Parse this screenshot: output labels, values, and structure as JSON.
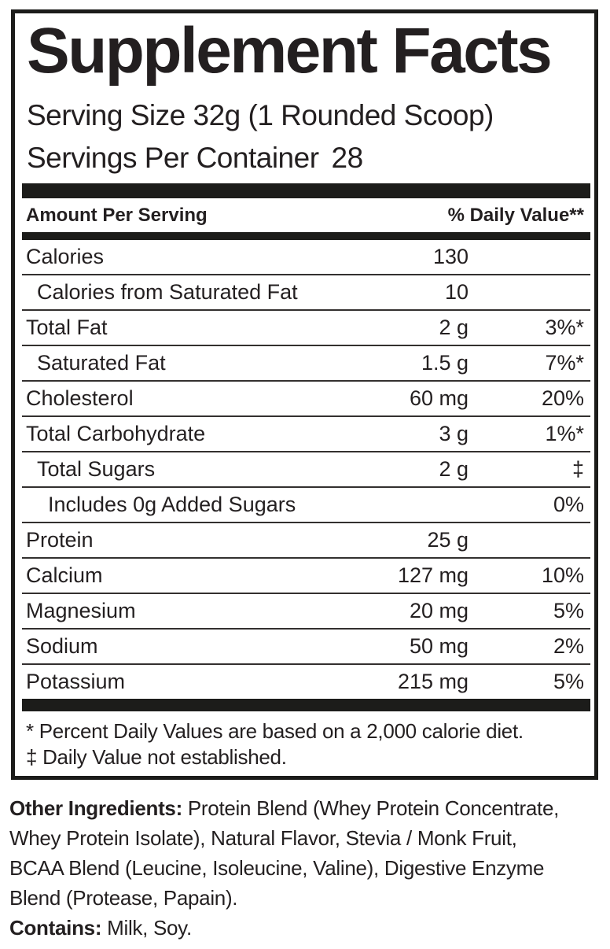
{
  "label": {
    "title": "Supplement Facts",
    "serving_size": "Serving Size 32g (1 Rounded Scoop)",
    "servings_per_container_label": "Servings Per Container",
    "servings_per_container_value": "28",
    "column_headers": {
      "amount": "Amount Per Serving",
      "daily_value": "% Daily Value**"
    },
    "rows": [
      {
        "name": "Calories",
        "amount": "130",
        "dv": "",
        "indent": 0
      },
      {
        "name": "Calories from Saturated Fat",
        "amount": "10",
        "dv": "",
        "indent": 1
      },
      {
        "name": "Total Fat",
        "amount": "2 g",
        "dv": "3%*",
        "indent": 0
      },
      {
        "name": "Saturated Fat",
        "amount": "1.5 g",
        "dv": "7%*",
        "indent": 1
      },
      {
        "name": "Cholesterol",
        "amount": "60 mg",
        "dv": "20%",
        "indent": 0
      },
      {
        "name": "Total Carbohydrate",
        "amount": "3 g",
        "dv": "1%*",
        "indent": 0
      },
      {
        "name": "Total Sugars",
        "amount": "2 g",
        "dv": "‡",
        "indent": 1
      },
      {
        "name": "Includes 0g Added Sugars",
        "amount": "",
        "dv": "0%",
        "indent": 2
      },
      {
        "name": "Protein",
        "amount": "25 g",
        "dv": "",
        "indent": 0
      },
      {
        "name": "Calcium",
        "amount": "127 mg",
        "dv": "10%",
        "indent": 0
      },
      {
        "name": "Magnesium",
        "amount": "20 mg",
        "dv": "5%",
        "indent": 0
      },
      {
        "name": "Sodium",
        "amount": "50 mg",
        "dv": "2%",
        "indent": 0
      },
      {
        "name": "Potassium",
        "amount": "215 mg",
        "dv": "5%",
        "indent": 0
      }
    ],
    "footnotes": [
      "* Percent Daily Values are based on a 2,000 calorie diet.",
      "‡ Daily Value not established."
    ]
  },
  "ingredients": {
    "lines": [
      {
        "bold": "Other Ingredients:",
        "text": " Protein Blend (Whey Protein Concentrate,"
      },
      {
        "bold": "",
        "text": "Whey Protein Isolate), Natural Flavor, Stevia / Monk Fruit,"
      },
      {
        "bold": "",
        "text": "BCAA Blend (Leucine, Isoleucine, Valine), Digestive Enzyme"
      },
      {
        "bold": "",
        "text": "Blend (Protease, Papain)."
      },
      {
        "bold": "Contains:",
        "text": " Milk, Soy."
      }
    ],
    "full_other_ingredients": "Other Ingredients: Protein Blend (Whey Protein Concentrate, Whey Protein Isolate), Natural Flavor, Stevia / Monk Fruit, BCAA Blend (Leucine, Isoleucine, Valine), Digestive Enzyme Blend (Protease, Papain).",
    "full_contains": "Contains: Milk, Soy."
  },
  "colors": {
    "text": "#231f20",
    "bar": "#1c1c1a",
    "background": "#ffffff"
  }
}
